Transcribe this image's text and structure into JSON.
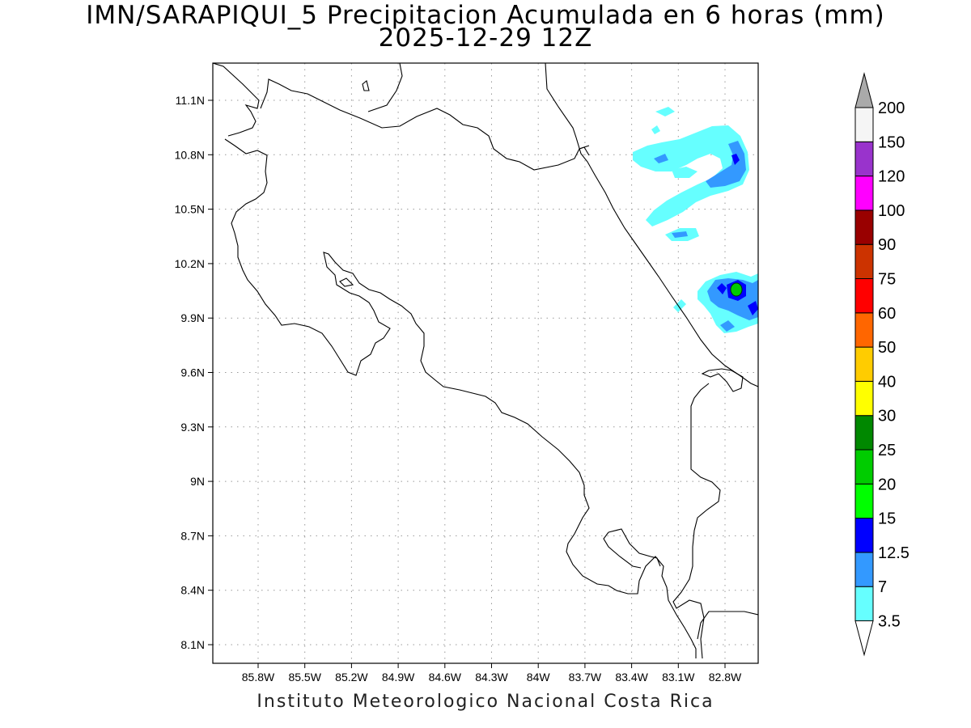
{
  "title": {
    "line1": "IMN/SARAPIQUI_5 Precipitacion Acumulada en 6 horas (mm)",
    "line2": "2025-12-29 12Z"
  },
  "footer": "Instituto Meteorologico Nacional Costa Rica",
  "map": {
    "lon_range": [
      -86.04,
      -82.56
    ],
    "lat_range": [
      8.01,
      11.29
    ],
    "x_ticks": [
      "85.8W",
      "85.5W",
      "85.2W",
      "84.9W",
      "84.6W",
      "84.3W",
      "84W",
      "83.7W",
      "83.4W",
      "83.1W",
      "82.8W"
    ],
    "y_ticks": [
      "11.1N",
      "10.8N",
      "10.5N",
      "10.2N",
      "9.9N",
      "9.6N",
      "9.3N",
      "9N",
      "8.7N",
      "8.4N",
      "8.1N"
    ],
    "gridlines": true,
    "gridline_style": "dotted"
  },
  "colorbar": {
    "labels": [
      "3.5",
      "7",
      "12.5",
      "15",
      "20",
      "25",
      "30",
      "40",
      "50",
      "60",
      "75",
      "90",
      "100",
      "120",
      "150",
      "200"
    ],
    "colors": [
      "#ffffff",
      "#66ffff",
      "#3399ff",
      "#0000ff",
      "#00ff00",
      "#00cc00",
      "#008800",
      "#ffff00",
      "#ffcc00",
      "#ff6600",
      "#ff0000",
      "#cc3300",
      "#990000",
      "#ff00ff",
      "#9933cc",
      "#f5f5f5",
      "#aaaaaa"
    ]
  },
  "precip_colors": {
    "light": "#66ffff",
    "moderate": "#3399ff",
    "heavy": "#0000ff",
    "very_heavy": "#00cc00"
  }
}
